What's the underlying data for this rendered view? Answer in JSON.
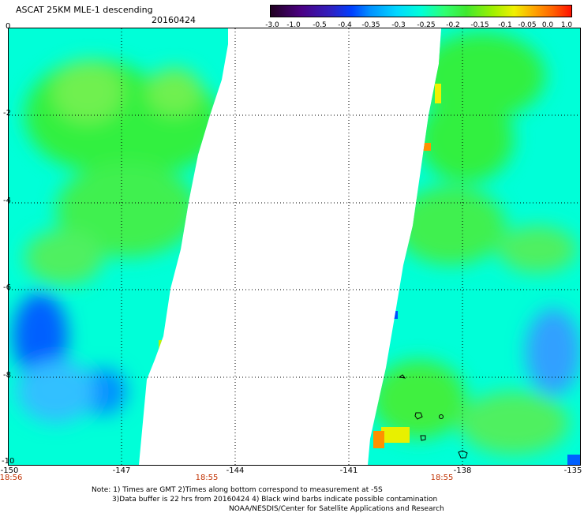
{
  "header": {
    "title": "ASCAT 25KM MLE-1 descending",
    "date": "20160424"
  },
  "colorbar": {
    "ticks": [
      "-3.0",
      "-1.0",
      "-0.5",
      "-0.4",
      "-0.35",
      "-0.3",
      "-0.25",
      "-0.2",
      "-0.15",
      "-0.1",
      "-0.05",
      "0.0",
      "1.0"
    ]
  },
  "axes": {
    "y_labels": [
      "0",
      "-2",
      "-4",
      "-6",
      "-8",
      "-10"
    ],
    "x_labels": [
      "-150",
      "-147",
      "-144",
      "-141",
      "-138",
      "-135"
    ],
    "time_labels": [
      "18:56",
      "18:55",
      "18:55"
    ]
  },
  "notes": {
    "line1": "Note: 1) Times are GMT 2)Times along bottom correspond to measurement at -5S",
    "line2": "3)Data buffer is 22 hrs from 20160424 4) Black wind barbs indicate possible contamination",
    "line3": "NOAA/NESDIS/Center for Satellite Applications and Research"
  },
  "colors": {
    "cyan": "#00ffff",
    "green": "#30ff30",
    "blue": "#0050ff",
    "yellow": "#f0f000",
    "orange": "#ff8000"
  }
}
